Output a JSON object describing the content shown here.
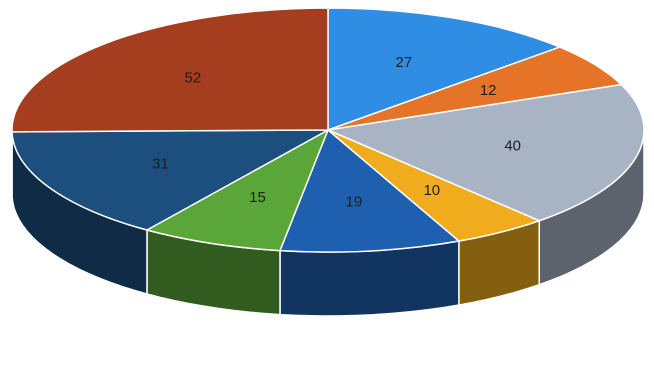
{
  "chart_data": {
    "type": "pie",
    "title": "",
    "labels": [
      "",
      "",
      "",
      "",
      "",
      "",
      "",
      ""
    ],
    "values": [
      27,
      12,
      40,
      10,
      19,
      15,
      31,
      52
    ],
    "colors": [
      "#2f8de4",
      "#e57428",
      "#a8b4c4",
      "#f0ac1c",
      "#1e5fb0",
      "#5aa638",
      "#1c4f7e",
      "#a43e1e"
    ],
    "legend": "none",
    "data_labels": [
      "27",
      "12",
      "40",
      "10",
      "19",
      "15",
      "31",
      "52"
    ]
  }
}
